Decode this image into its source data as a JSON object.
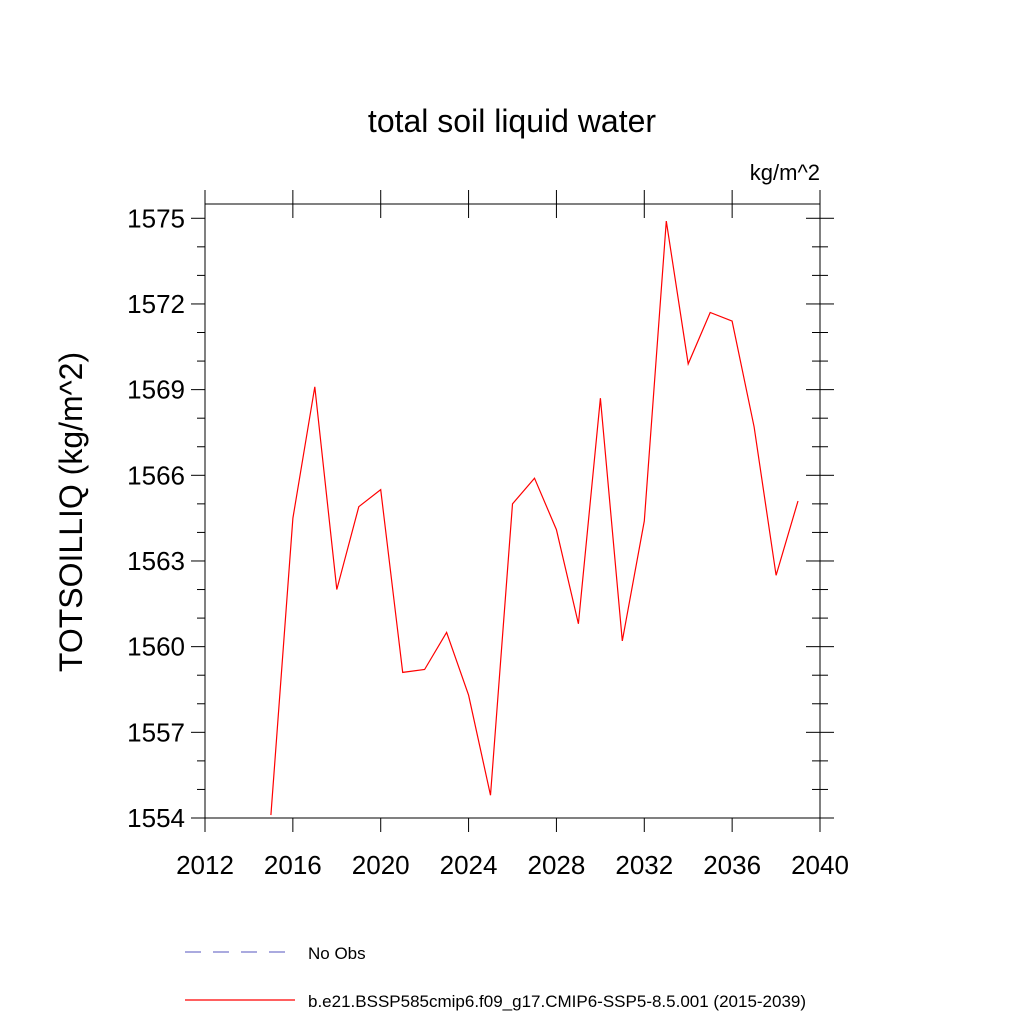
{
  "chart_data": {
    "type": "line",
    "title": "total soil liquid water",
    "units_label": "kg/m^2",
    "ylabel": "TOTSOILLIQ  (kg/m^2)",
    "xlabel": "",
    "xlim": [
      2012,
      2040
    ],
    "ylim": [
      1554,
      1575.5
    ],
    "x_ticks": [
      2012,
      2016,
      2020,
      2024,
      2028,
      2032,
      2036,
      2040
    ],
    "y_ticks": [
      1554,
      1557,
      1560,
      1563,
      1566,
      1569,
      1572,
      1575
    ],
    "grid": false,
    "legend_position": "bottom",
    "series": [
      {
        "name": "b.e21.BSSP585cmip6.f09_g17.CMIP6-SSP5-8.5.001 (2015-2039)",
        "color": "#ff0000",
        "style": "solid",
        "x": [
          2015,
          2016,
          2017,
          2018,
          2019,
          2020,
          2021,
          2022,
          2023,
          2024,
          2025,
          2026,
          2027,
          2028,
          2029,
          2030,
          2031,
          2032,
          2033,
          2034,
          2035,
          2036,
          2037,
          2038,
          2039
        ],
        "values": [
          1554.1,
          1564.5,
          1569.1,
          1562.0,
          1564.9,
          1565.5,
          1559.1,
          1559.2,
          1560.5,
          1558.3,
          1554.8,
          1565.0,
          1565.9,
          1564.1,
          1560.8,
          1568.7,
          1560.2,
          1564.4,
          1574.9,
          1569.9,
          1571.7,
          1571.4,
          1567.7,
          1562.5,
          1565.1
        ]
      },
      {
        "name": "No Obs",
        "color": "#7777cc",
        "style": "dashed",
        "x": [],
        "values": []
      }
    ]
  }
}
